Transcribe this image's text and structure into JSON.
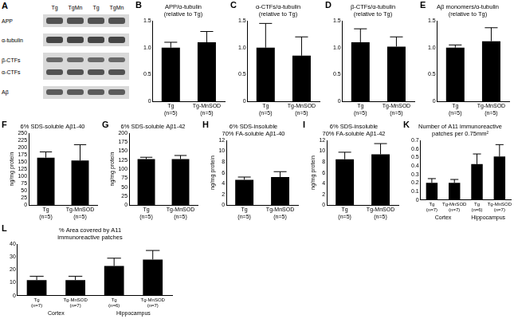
{
  "blot": {
    "panel": "A",
    "lanes": [
      "Tg",
      "TgMn",
      "Tg",
      "TgMn"
    ],
    "rows": [
      "APP",
      "α-tubulin",
      "β-CTFs",
      "α-CTFs",
      "Aβ"
    ]
  },
  "chart_data": [
    {
      "panel": "B",
      "type": "bar",
      "title": [
        "APP/α-tubulin",
        "(relative to Tg)"
      ],
      "categories": [
        "Tg (n=5)",
        "Tg-MnSOD (n=5)"
      ],
      "values": [
        1.0,
        1.1
      ],
      "errors": [
        0.1,
        0.2
      ],
      "color": "#000000",
      "ylim": [
        0,
        1.5
      ],
      "yticks": [
        0,
        0.5,
        {
          "value": 1,
          "label": "1.0"
        },
        1.5
      ],
      "grid": false
    },
    {
      "panel": "C",
      "type": "bar",
      "title": [
        "α-CTFs/α-tubulin",
        "(relative to Tg)"
      ],
      "categories": [
        "Tg (n=5)",
        "Tg-MnSOD (n=5)"
      ],
      "values": [
        1.0,
        0.85
      ],
      "errors": [
        0.45,
        0.35
      ],
      "color": "#000000",
      "ylim": [
        0,
        1.5
      ],
      "yticks": [
        0,
        0.5,
        {
          "value": 1,
          "label": "1.0"
        },
        1.5
      ],
      "grid": false
    },
    {
      "panel": "D",
      "type": "bar",
      "title": [
        "β-CTFs/α-tubulin",
        "(relative to Tg)"
      ],
      "categories": [
        "Tg (n=5)",
        "Tg-MnSOD (n=5)"
      ],
      "values": [
        1.1,
        1.02
      ],
      "errors": [
        0.25,
        0.18
      ],
      "color": "#000000",
      "ylim": [
        0,
        1.5
      ],
      "yticks": [
        0,
        0.5,
        {
          "value": 1,
          "label": "1.0"
        },
        1.5
      ],
      "grid": false
    },
    {
      "panel": "E",
      "type": "bar",
      "title": [
        "Aβ monomers/α-tubulin",
        "(relative to Tg)"
      ],
      "categories": [
        "Tg (n=5)",
        "Tg-MnSOD (n=5)"
      ],
      "values": [
        1.0,
        1.12
      ],
      "errors": [
        0.05,
        0.25
      ],
      "color": "#000000",
      "ylim": [
        0,
        1.5
      ],
      "yticks": [
        0,
        0.5,
        {
          "value": 1,
          "label": "1.0"
        },
        1.5
      ],
      "grid": false
    },
    {
      "panel": "F",
      "type": "bar",
      "title": [
        "6% SDS-soluble Aβ1-40"
      ],
      "y_label": "ng/mg protein",
      "categories": [
        "Tg (n=5)",
        "Tg-MnSOD (n=5)"
      ],
      "values": [
        165,
        155
      ],
      "errors": [
        20,
        55
      ],
      "color": "#000000",
      "ylim": [
        0,
        250
      ],
      "yticks": [
        0,
        25,
        50,
        75,
        100,
        125,
        150,
        175,
        200,
        225,
        250
      ],
      "grid": false
    },
    {
      "panel": "G",
      "type": "bar",
      "title": [
        "6% SDS-soluble Aβ1-42"
      ],
      "y_label": "ng/mg protein",
      "categories": [
        "Tg (n=5)",
        "Tg-MnSOD (n=5)"
      ],
      "values": [
        128,
        128
      ],
      "errors": [
        5,
        10
      ],
      "color": "#000000",
      "ylim": [
        0,
        200
      ],
      "yticks": [
        0,
        25,
        50,
        75,
        100,
        125,
        150,
        175,
        200
      ],
      "grid": false
    },
    {
      "panel": "H",
      "type": "bar",
      "title": [
        "6% SDS-insoluble",
        "70% FA-soluble Aβ1-40"
      ],
      "y_label": "ng/mg protein",
      "categories": [
        "Tg (n=5)",
        "Tg-MnSOD (n=5)"
      ],
      "values": [
        4.7,
        5.2
      ],
      "errors": [
        0.5,
        1.0
      ],
      "color": "#000000",
      "ylim": [
        0,
        12
      ],
      "yticks": [
        0,
        2,
        4,
        6,
        8,
        10,
        12
      ],
      "grid": false
    },
    {
      "panel": "I",
      "type": "bar",
      "title": [
        "6% SDS-insoluble",
        "70% FA-soluble Aβ1-42"
      ],
      "y_label": "ng/mg protein",
      "categories": [
        "Tg (n=5)",
        "Tg-MnSOD (n=5)"
      ],
      "values": [
        8.5,
        9.4
      ],
      "errors": [
        1.3,
        2.0
      ],
      "color": "#000000",
      "ylim": [
        0,
        12
      ],
      "yticks": [
        0,
        2,
        4,
        6,
        8,
        10,
        12
      ],
      "grid": false
    },
    {
      "panel": "K",
      "type": "bar",
      "title": [
        "Number of A11 immunoreactive",
        "patches per 0.75mm²"
      ],
      "categories": [
        "Tg (n=7)",
        "Tg-MnSOD (n=7)",
        "Tg (n=6)",
        "Tg-MnSOD (n=7)"
      ],
      "group_labels": [
        "Cortex",
        "Hippocampus"
      ],
      "values": [
        0.2,
        0.2,
        0.42,
        0.51
      ],
      "errors": [
        0.05,
        0.04,
        0.12,
        0.14
      ],
      "color": "#000000",
      "ylim": [
        0,
        0.7
      ],
      "yticks": [
        0,
        0.1,
        0.2,
        0.3,
        0.4,
        0.5,
        0.6,
        0.7
      ],
      "grid": false
    },
    {
      "panel": "L",
      "type": "bar",
      "title": [
        "% Area covered by A11",
        "immunoreactive patches"
      ],
      "categories": [
        "Tg (n=7)",
        "Tg-MnSOD (n=7)",
        "Tg (n=6)",
        "Tg-MnSOD (n=7)"
      ],
      "group_labels": [
        "Cortex",
        "Hippocampus"
      ],
      "values": [
        12,
        12,
        23,
        28
      ],
      "errors": [
        3,
        3,
        6,
        7
      ],
      "color": "#000000",
      "ylim": [
        0,
        40
      ],
      "yticks": [
        0,
        10,
        20,
        30,
        40
      ],
      "grid": false
    }
  ]
}
